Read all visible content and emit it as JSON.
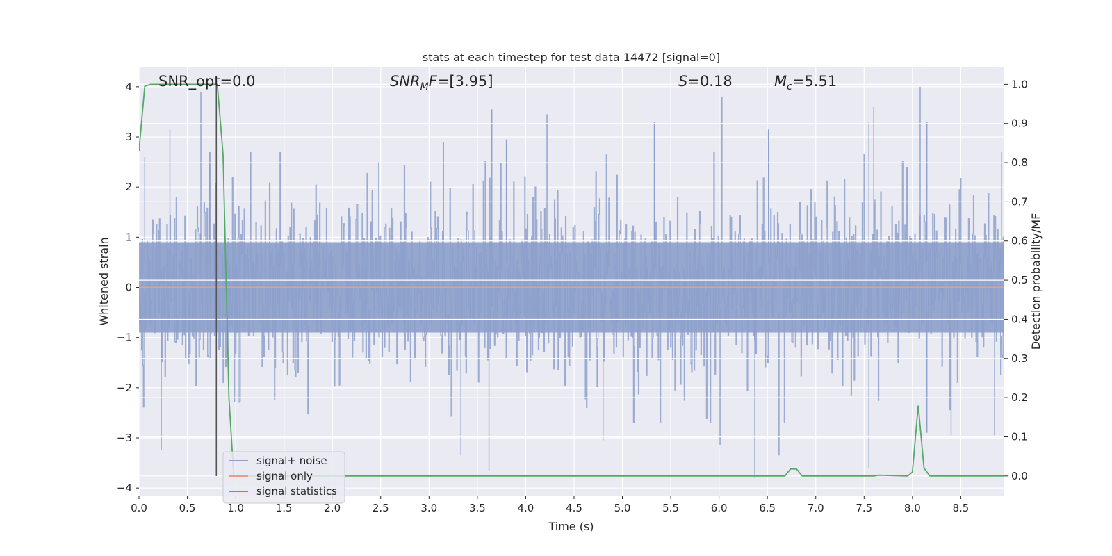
{
  "chart_data": {
    "type": "line",
    "title": "stats at each timestep for test data 14472 [signal=0]",
    "xlabel": "Time (s)",
    "ylabel": "Whitened strain",
    "y2label": "Detection probability/MF",
    "xlim": [
      0.0,
      8.95
    ],
    "ylim": [
      -4.15,
      4.4
    ],
    "y2lim": [
      -0.05,
      1.045
    ],
    "xticks": [
      "0.0",
      "0.5",
      "1.0",
      "1.5",
      "2.0",
      "2.5",
      "3.0",
      "3.5",
      "4.0",
      "4.5",
      "5.0",
      "5.5",
      "6.0",
      "6.5",
      "7.0",
      "7.5",
      "8.0",
      "8.5"
    ],
    "yticks": [
      "4",
      "3",
      "2",
      "1",
      "0",
      "−1",
      "−2",
      "−3",
      "−4"
    ],
    "y2ticks": [
      "1.0",
      "0.9",
      "0.8",
      "0.7",
      "0.6",
      "0.5",
      "0.4",
      "0.3",
      "0.2",
      "0.1",
      "0.0"
    ],
    "grid": true,
    "legend_position": "lower-left",
    "series": [
      {
        "name": "signal+ noise",
        "color": "#8da0cb",
        "kind": "noise",
        "peaks": [
          {
            "x": 0.06,
            "y": 2.6
          },
          {
            "x": 0.32,
            "y": 3.15
          },
          {
            "x": 0.64,
            "y": 3.9
          },
          {
            "x": 0.73,
            "y": 2.45
          },
          {
            "x": 2.48,
            "y": 2.5
          },
          {
            "x": 3.15,
            "y": 2.9
          },
          {
            "x": 3.65,
            "y": 3.55
          },
          {
            "x": 3.8,
            "y": 2.95
          },
          {
            "x": 4.22,
            "y": 3.45
          },
          {
            "x": 5.33,
            "y": 3.3
          },
          {
            "x": 6.03,
            "y": 3.8
          },
          {
            "x": 6.51,
            "y": 3.15
          },
          {
            "x": 7.55,
            "y": 3.3
          },
          {
            "x": 7.6,
            "y": 3.6
          },
          {
            "x": 8.08,
            "y": 4.0
          },
          {
            "x": 8.15,
            "y": 3.3
          },
          {
            "x": 8.92,
            "y": 2.7
          }
        ],
        "troughs": [
          {
            "x": 0.23,
            "y": -3.25
          },
          {
            "x": 3.33,
            "y": -3.35
          },
          {
            "x": 3.62,
            "y": -3.65
          },
          {
            "x": 4.8,
            "y": -3.05
          },
          {
            "x": 6.01,
            "y": -3.15
          },
          {
            "x": 6.37,
            "y": -3.8
          },
          {
            "x": 6.62,
            "y": -3.35
          },
          {
            "x": 7.55,
            "y": -3.6
          },
          {
            "x": 8.15,
            "y": -2.9
          },
          {
            "x": 8.4,
            "y": -2.95
          },
          {
            "x": 8.85,
            "y": -2.95
          }
        ]
      },
      {
        "name": "signal only",
        "color": "#e5a07f",
        "kind": "flat",
        "y": 0.0
      },
      {
        "name": "signal statistics",
        "color": "#55a868",
        "axis": "right",
        "x": [
          0.0,
          0.06,
          0.12,
          0.3,
          0.5,
          0.7,
          0.81,
          0.87,
          0.93,
          0.98,
          1.5,
          2.5,
          3.5,
          4.5,
          5.5,
          6.5,
          6.68,
          6.74,
          6.8,
          6.86,
          7.2,
          7.6,
          7.65,
          7.95,
          8.0,
          8.06,
          8.12,
          8.18,
          8.5,
          8.95
        ],
        "y": [
          0.83,
          0.995,
          1.0,
          1.0,
          1.0,
          1.0,
          1.0,
          0.82,
          0.2,
          0.0,
          0.0,
          0.0,
          0.0,
          0.0,
          0.0,
          0.0,
          0.0,
          0.018,
          0.018,
          0.0,
          0.0,
          0.0,
          0.002,
          0.0,
          0.01,
          0.18,
          0.02,
          0.0,
          0.0,
          0.0
        ]
      }
    ],
    "vline": {
      "x": 0.8,
      "color": "#555555"
    },
    "annotations": {
      "snr_opt": "SNR_opt=0.0",
      "snr_mf_prefix": "SNR",
      "snr_mf_sub": "M",
      "snr_mf_mid": "F",
      "snr_mf_suffix": "=[3.95]",
      "s_symbol": "S",
      "s_value": "=0.18",
      "mc_symbol": "M",
      "mc_sub": "c",
      "mc_value": "=5.51"
    }
  }
}
